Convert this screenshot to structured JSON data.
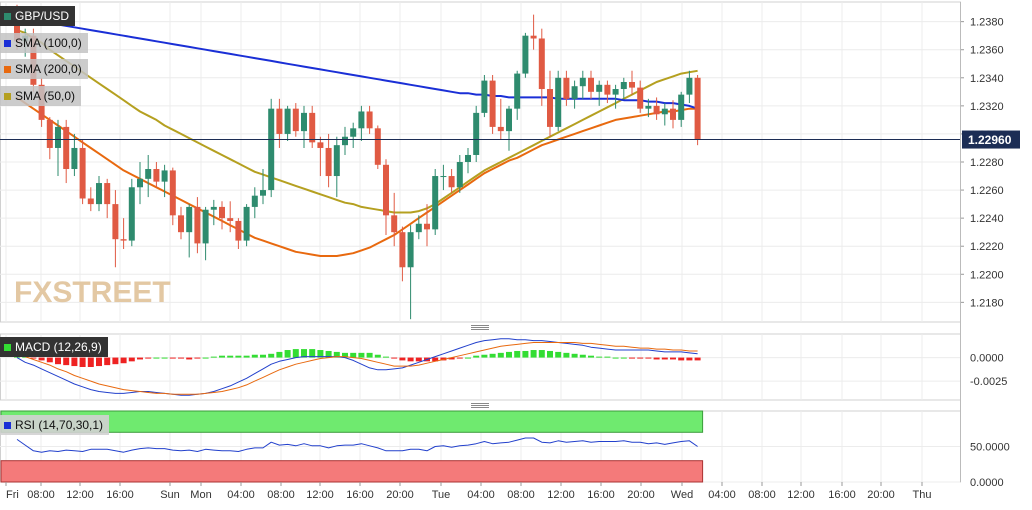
{
  "symbol": "GBP/USD",
  "watermark": "FXSTREET",
  "current_price": "1.22960",
  "indicators": {
    "sma100": {
      "label": "SMA (100,0)",
      "color": "#1a2fd6"
    },
    "sma200": {
      "label": "SMA (200,0)",
      "color": "#e8690f"
    },
    "sma50": {
      "label": "SMA (50,0)",
      "color": "#b5a020"
    },
    "macd": {
      "label": "MACD (12,26,9)"
    },
    "rsi": {
      "label": "RSI (14,70,30,1)"
    }
  },
  "colors": {
    "up": "#2e8b6e",
    "down": "#e05a43",
    "macd_pos": "#33dd33",
    "macd_neg": "#ee2222",
    "rsi_high": "#6fea6f",
    "rsi_low": "#f47a7a"
  },
  "chart_data": [
    {
      "type": "candlestick",
      "title": "GBP/USD",
      "y_ticks": [
        "1.2380",
        "1.2360",
        "1.2340",
        "1.2320",
        "1.2300",
        "1.2280",
        "1.2260",
        "1.2240",
        "1.2220",
        "1.2200",
        "1.2180"
      ],
      "ylim": [
        1.2166,
        1.2394
      ],
      "x_ticks": [
        "Fri",
        "08:00",
        "12:00",
        "16:00",
        "Sun",
        "Mon",
        "04:00",
        "08:00",
        "12:00",
        "16:00",
        "20:00",
        "Tue",
        "04:00",
        "08:00",
        "12:00",
        "16:00",
        "20:00",
        "Wed",
        "04:00",
        "08:00",
        "12:00",
        "16:00",
        "20:00",
        "Thu"
      ],
      "grid": true,
      "candles": [
        [
          1.2378,
          1.2392,
          1.236,
          1.2366
        ],
        [
          1.2366,
          1.2375,
          1.2355,
          1.237
        ],
        [
          1.237,
          1.2375,
          1.233,
          1.2335
        ],
        [
          1.2335,
          1.234,
          1.2305,
          1.231
        ],
        [
          1.231,
          1.2312,
          1.2282,
          1.229
        ],
        [
          1.229,
          1.231,
          1.227,
          1.2305
        ],
        [
          1.2305,
          1.231,
          1.2265,
          1.2275
        ],
        [
          1.2275,
          1.23,
          1.227,
          1.229
        ],
        [
          1.229,
          1.2296,
          1.225,
          1.2254
        ],
        [
          1.2254,
          1.2262,
          1.2245,
          1.225
        ],
        [
          1.225,
          1.227,
          1.2245,
          1.2265
        ],
        [
          1.2265,
          1.2268,
          1.224,
          1.225
        ],
        [
          1.225,
          1.226,
          1.2205,
          1.2225
        ],
        [
          1.2225,
          1.224,
          1.2218,
          1.2224
        ],
        [
          1.2224,
          1.2268,
          1.222,
          1.2262
        ],
        [
          1.2262,
          1.228,
          1.225,
          1.2268
        ],
        [
          1.2268,
          1.2285,
          1.2255,
          1.2275
        ],
        [
          1.2275,
          1.228,
          1.2262,
          1.2266
        ],
        [
          1.2266,
          1.2278,
          1.2255,
          1.2274
        ],
        [
          1.2274,
          1.2276,
          1.2235,
          1.2242
        ],
        [
          1.2242,
          1.2248,
          1.2225,
          1.223
        ],
        [
          1.223,
          1.225,
          1.2212,
          1.2248
        ],
        [
          1.2248,
          1.2255,
          1.2215,
          1.2222
        ],
        [
          1.2222,
          1.2248,
          1.221,
          1.2246
        ],
        [
          1.2246,
          1.2253,
          1.2235,
          1.2248
        ],
        [
          1.2248,
          1.2252,
          1.2232,
          1.224
        ],
        [
          1.224,
          1.2252,
          1.223,
          1.2238
        ],
        [
          1.2238,
          1.224,
          1.2218,
          1.2224
        ],
        [
          1.2224,
          1.225,
          1.222,
          1.2248
        ],
        [
          1.2248,
          1.2262,
          1.224,
          1.2256
        ],
        [
          1.2256,
          1.2275,
          1.225,
          1.226
        ],
        [
          1.226,
          1.2325,
          1.2255,
          1.2318
        ],
        [
          1.2318,
          1.2325,
          1.229,
          1.23
        ],
        [
          1.23,
          1.232,
          1.2295,
          1.2318
        ],
        [
          1.2318,
          1.2322,
          1.2298,
          1.2302
        ],
        [
          1.2302,
          1.232,
          1.229,
          1.2315
        ],
        [
          1.2315,
          1.232,
          1.229,
          1.2294
        ],
        [
          1.2294,
          1.2298,
          1.227,
          1.229
        ],
        [
          1.229,
          1.23,
          1.2262,
          1.227
        ],
        [
          1.227,
          1.2298,
          1.2255,
          1.2292
        ],
        [
          1.2292,
          1.2305,
          1.2285,
          1.2298
        ],
        [
          1.2298,
          1.2308,
          1.229,
          1.2304
        ],
        [
          1.2304,
          1.232,
          1.2295,
          1.2316
        ],
        [
          1.2316,
          1.232,
          1.23,
          1.2304
        ],
        [
          1.2304,
          1.2306,
          1.2275,
          1.2278
        ],
        [
          1.2278,
          1.2282,
          1.2228,
          1.2242
        ],
        [
          1.2242,
          1.2258,
          1.222,
          1.223
        ],
        [
          1.223,
          1.2234,
          1.2195,
          1.2205
        ],
        [
          1.2205,
          1.2235,
          1.2168,
          1.223
        ],
        [
          1.223,
          1.2242,
          1.2225,
          1.2236
        ],
        [
          1.2236,
          1.225,
          1.222,
          1.2232
        ],
        [
          1.2232,
          1.2275,
          1.2228,
          1.227
        ],
        [
          1.227,
          1.2278,
          1.226,
          1.227
        ],
        [
          1.227,
          1.2275,
          1.2258,
          1.2262
        ],
        [
          1.2262,
          1.2285,
          1.2258,
          1.228
        ],
        [
          1.228,
          1.229,
          1.2272,
          1.2285
        ],
        [
          1.2285,
          1.232,
          1.228,
          1.2315
        ],
        [
          1.2315,
          1.2342,
          1.2312,
          1.2338
        ],
        [
          1.2338,
          1.2342,
          1.23,
          1.2305
        ],
        [
          1.2305,
          1.2325,
          1.2296,
          1.2302
        ],
        [
          1.2302,
          1.232,
          1.2288,
          1.2318
        ],
        [
          1.2318,
          1.2345,
          1.231,
          1.2343
        ],
        [
          1.2343,
          1.2372,
          1.234,
          1.237
        ],
        [
          1.237,
          1.2385,
          1.236,
          1.2368
        ],
        [
          1.2368,
          1.2375,
          1.232,
          1.2332
        ],
        [
          1.2332,
          1.2345,
          1.2298,
          1.2305
        ],
        [
          1.2305,
          1.2345,
          1.2302,
          1.234
        ],
        [
          1.234,
          1.2345,
          1.232,
          1.2325
        ],
        [
          1.2325,
          1.2338,
          1.2318,
          1.2334
        ],
        [
          1.2334,
          1.2345,
          1.2325,
          1.234
        ],
        [
          1.234,
          1.2345,
          1.2325,
          1.233
        ],
        [
          1.233,
          1.2338,
          1.232,
          1.2335
        ],
        [
          1.2335,
          1.2338,
          1.2322,
          1.2328
        ],
        [
          1.2328,
          1.2335,
          1.2318,
          1.2332
        ],
        [
          1.2332,
          1.234,
          1.2325,
          1.2337
        ],
        [
          1.2337,
          1.2345,
          1.2328,
          1.2333
        ],
        [
          1.2333,
          1.2338,
          1.2315,
          1.2318
        ],
        [
          1.2318,
          1.2325,
          1.2312,
          1.232
        ],
        [
          1.232,
          1.2326,
          1.231,
          1.2314
        ],
        [
          1.2314,
          1.2322,
          1.2306,
          1.2318
        ],
        [
          1.2318,
          1.2324,
          1.2304,
          1.231
        ],
        [
          1.231,
          1.233,
          1.2305,
          1.2328
        ],
        [
          1.2328,
          1.2345,
          1.2322,
          1.234
        ],
        [
          1.234,
          1.2342,
          1.2292,
          1.2296
        ]
      ],
      "sma50": [
        1.2374,
        1.2372,
        1.2368,
        1.2365,
        1.236,
        1.2356,
        1.2352,
        1.2348,
        1.2344,
        1.234,
        1.2336,
        1.2332,
        1.2328,
        1.2324,
        1.232,
        1.2316,
        1.2313,
        1.231,
        1.2306,
        1.2303,
        1.23,
        1.2297,
        1.2294,
        1.2291,
        1.2288,
        1.2285,
        1.2282,
        1.2279,
        1.2276,
        1.2273,
        1.2271,
        1.2269,
        1.2267,
        1.2265,
        1.2263,
        1.2261,
        1.2259,
        1.2257,
        1.2255,
        1.2253,
        1.2251,
        1.225,
        1.2248,
        1.2247,
        1.2246,
        1.2245,
        1.2244,
        1.2244,
        1.2244,
        1.2245,
        1.2247,
        1.225,
        1.2254,
        1.2258,
        1.2262,
        1.2266,
        1.227,
        1.2274,
        1.2277,
        1.228,
        1.2283,
        1.2286,
        1.2289,
        1.2292,
        1.2295,
        1.2298,
        1.2301,
        1.2304,
        1.2307,
        1.231,
        1.2313,
        1.2316,
        1.2319,
        1.2322,
        1.2325,
        1.2328,
        1.2331,
        1.2334,
        1.2337,
        1.2339,
        1.2341,
        1.2343,
        1.2344,
        1.2345
      ],
      "sma100": [
        1.238,
        1.238,
        1.238,
        1.2379,
        1.2378,
        1.2378,
        1.2377,
        1.2376,
        1.2375,
        1.2374,
        1.2373,
        1.2372,
        1.2371,
        1.237,
        1.2369,
        1.2368,
        1.2367,
        1.2366,
        1.2365,
        1.2364,
        1.2363,
        1.2362,
        1.2361,
        1.236,
        1.2359,
        1.2358,
        1.2357,
        1.2356,
        1.2355,
        1.2354,
        1.2353,
        1.2352,
        1.2351,
        1.235,
        1.2349,
        1.2348,
        1.2347,
        1.2346,
        1.2345,
        1.2344,
        1.2343,
        1.2342,
        1.2341,
        1.234,
        1.2339,
        1.2338,
        1.2337,
        1.2336,
        1.2335,
        1.2334,
        1.2333,
        1.2332,
        1.2331,
        1.233,
        1.2329,
        1.2329,
        1.2328,
        1.2328,
        1.2327,
        1.2327,
        1.2326,
        1.2326,
        1.2326,
        1.2326,
        1.2326,
        1.2326,
        1.2325,
        1.2325,
        1.2325,
        1.2325,
        1.2325,
        1.2325,
        1.2325,
        1.2325,
        1.2324,
        1.2324,
        1.2324,
        1.2323,
        1.2323,
        1.2322,
        1.2322,
        1.2321,
        1.232,
        1.2318
      ],
      "sma200": [
        1.2326,
        1.2322,
        1.2318,
        1.2314,
        1.231,
        1.2306,
        1.2302,
        1.2298,
        1.2294,
        1.229,
        1.2286,
        1.2282,
        1.2278,
        1.2274,
        1.2271,
        1.2268,
        1.2265,
        1.2262,
        1.2259,
        1.2256,
        1.2253,
        1.225,
        1.2247,
        1.2244,
        1.2241,
        1.2238,
        1.2235,
        1.2232,
        1.2229,
        1.2226,
        1.2224,
        1.2222,
        1.222,
        1.2218,
        1.2216,
        1.2215,
        1.2214,
        1.2213,
        1.2213,
        1.2213,
        1.2214,
        1.2215,
        1.2217,
        1.2219,
        1.2222,
        1.2225,
        1.2228,
        1.2232,
        1.2236,
        1.224,
        1.2244,
        1.2248,
        1.2252,
        1.2256,
        1.226,
        1.2264,
        1.2268,
        1.2272,
        1.2275,
        1.2278,
        1.2281,
        1.2283,
        1.2286,
        1.2289,
        1.2292,
        1.2294,
        1.2296,
        1.2298,
        1.23,
        1.2302,
        1.2304,
        1.2306,
        1.2308,
        1.231,
        1.2311,
        1.2312,
        1.2313,
        1.2314,
        1.2315,
        1.2316,
        1.2316,
        1.2317,
        1.2318,
        1.2318
      ]
    },
    {
      "type": "macd",
      "title": "MACD (12,26,9)",
      "y_ticks": [
        "0.0000",
        "-0.0025"
      ],
      "ylim": [
        -0.0045,
        0.0025
      ],
      "histogram": [
        0.0002,
        0.0001,
        -0.0001,
        -0.0003,
        -0.0005,
        -0.0007,
        -0.0008,
        -0.0009,
        -0.001,
        -0.001,
        -0.0009,
        -0.0008,
        -0.0007,
        -0.0006,
        -0.0004,
        -0.0002,
        -0.0001,
        0.0,
        0.0,
        -0.0001,
        -0.0001,
        -0.0002,
        -0.0001,
        0.0,
        0.0001,
        0.0002,
        0.0002,
        0.0002,
        0.0002,
        0.0003,
        0.0003,
        0.0004,
        0.0006,
        0.0008,
        0.0009,
        0.0009,
        0.0009,
        0.0008,
        0.0007,
        0.0006,
        0.0005,
        0.0005,
        0.0005,
        0.0005,
        0.0003,
        0.0001,
        -0.0001,
        -0.0003,
        -0.0004,
        -0.0004,
        -0.0004,
        -0.0004,
        -0.0003,
        -0.0002,
        -0.0001,
        0.0,
        0.0002,
        0.0003,
        0.0004,
        0.0005,
        0.0006,
        0.0007,
        0.0007,
        0.0008,
        0.0008,
        0.0007,
        0.0006,
        0.0005,
        0.0004,
        0.0003,
        0.0002,
        0.0001,
        0.0001,
        0.0,
        0.0,
        -0.0001,
        -0.0001,
        -0.0001,
        -0.0002,
        -0.0002,
        -0.0002,
        -0.0003,
        -0.0003,
        -0.0003
      ],
      "macd_line": [
        0.0,
        -0.0005,
        -0.0008,
        -0.0012,
        -0.0016,
        -0.002,
        -0.0024,
        -0.0028,
        -0.0031,
        -0.0034,
        -0.0036,
        -0.0037,
        -0.0038,
        -0.0038,
        -0.0037,
        -0.0036,
        -0.0036,
        -0.0037,
        -0.0038,
        -0.0039,
        -0.004,
        -0.004,
        -0.0039,
        -0.0038,
        -0.0036,
        -0.0033,
        -0.003,
        -0.0026,
        -0.0022,
        -0.0017,
        -0.0012,
        -0.0007,
        -0.0004,
        -0.0002,
        0.0,
        0.0001,
        0.0001,
        0.0001,
        0.0001,
        0.0001,
        0.0,
        -0.0003,
        -0.0007,
        -0.0011,
        -0.0013,
        -0.0013,
        -0.0012,
        -0.0011,
        -0.0008,
        -0.0005,
        -0.0002,
        0.0001,
        0.0004,
        0.0007,
        0.001,
        0.0013,
        0.0016,
        0.0018,
        0.0019,
        0.002,
        0.002,
        0.0019,
        0.0019,
        0.0018,
        0.0018,
        0.0017,
        0.0016,
        0.0015,
        0.0014,
        0.0013,
        0.0011,
        0.001,
        0.0009,
        0.0008,
        0.0008,
        0.0008,
        0.0008,
        0.0008,
        0.0007,
        0.0006,
        0.0006,
        0.0006,
        0.0005,
        0.0004
      ],
      "signal_line": [
        0.0003,
        0.0001,
        -0.0002,
        -0.0005,
        -0.0008,
        -0.0012,
        -0.0015,
        -0.0019,
        -0.0022,
        -0.0025,
        -0.0028,
        -0.003,
        -0.0032,
        -0.0034,
        -0.0035,
        -0.0036,
        -0.0037,
        -0.0038,
        -0.0038,
        -0.0039,
        -0.0039,
        -0.0039,
        -0.0039,
        -0.0038,
        -0.0037,
        -0.0036,
        -0.0034,
        -0.0032,
        -0.0029,
        -0.0025,
        -0.0021,
        -0.0017,
        -0.0013,
        -0.001,
        -0.0007,
        -0.0005,
        -0.0003,
        -0.0001,
        0.0,
        0.0001,
        0.0001,
        0.0,
        -0.0001,
        -0.0003,
        -0.0005,
        -0.0007,
        -0.0009,
        -0.0009,
        -0.0009,
        -0.0008,
        -0.0006,
        -0.0004,
        -0.0002,
        0.0,
        0.0002,
        0.0004,
        0.0006,
        0.0008,
        0.001,
        0.0012,
        0.0013,
        0.0014,
        0.0015,
        0.0016,
        0.0016,
        0.0016,
        0.0016,
        0.0016,
        0.0016,
        0.0015,
        0.0015,
        0.0014,
        0.0013,
        0.0012,
        0.0012,
        0.0011,
        0.001,
        0.001,
        0.0009,
        0.0009,
        0.0008,
        0.0008,
        0.0007,
        0.0007
      ]
    },
    {
      "type": "rsi",
      "title": "RSI (14,70,30,1)",
      "y_ticks": [
        "50.0000",
        "0.0000"
      ],
      "ylim": [
        0,
        100
      ],
      "upper": 70,
      "lower": 30,
      "values": [
        60,
        52,
        44,
        42,
        44,
        43,
        45,
        44,
        43,
        46,
        46,
        46,
        44,
        42,
        45,
        47,
        48,
        47,
        47,
        45,
        44,
        45,
        43,
        46,
        45,
        44,
        44,
        43,
        46,
        48,
        48,
        56,
        52,
        53,
        51,
        54,
        51,
        51,
        48,
        51,
        52,
        52,
        54,
        51,
        48,
        44,
        44,
        44,
        46,
        46,
        44,
        50,
        51,
        49,
        51,
        52,
        54,
        57,
        54,
        55,
        56,
        59,
        62,
        62,
        56,
        55,
        58,
        56,
        57,
        58,
        56,
        57,
        57,
        57,
        58,
        56,
        56,
        54,
        55,
        53,
        55,
        57,
        58,
        50
      ]
    }
  ]
}
